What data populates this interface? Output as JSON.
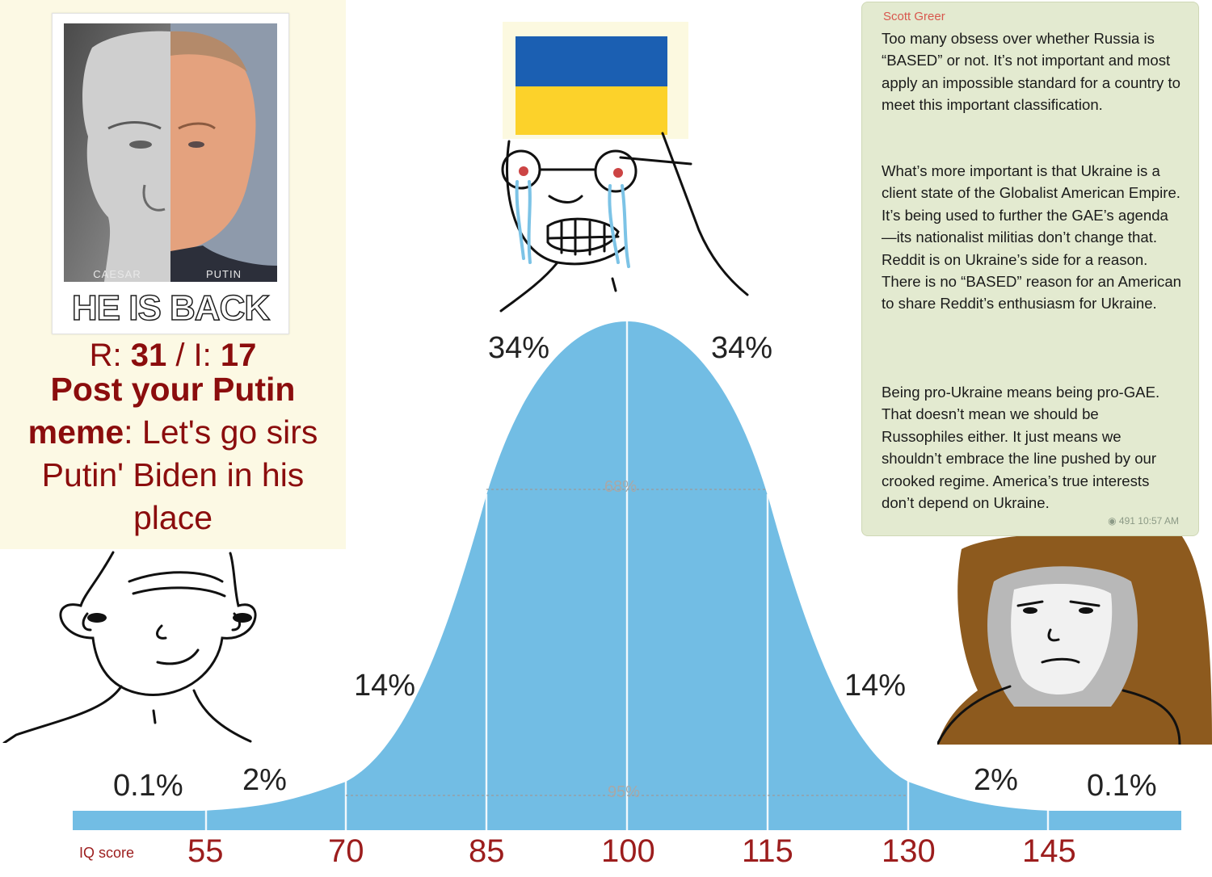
{
  "post": {
    "image_left_caption": "CAESAR",
    "image_right_caption": "PUTIN",
    "image_headline": "HE IS BACK",
    "replies_label": "R: ",
    "replies": "31",
    "images_label": " / I: ",
    "images": "17",
    "subject": "Post your Putin meme",
    "body": ": Let's go sirs Putin' Biden in his place"
  },
  "telegram": {
    "author": "Scott Greer",
    "paragraphs": [
      "Too many obsess over whether Russia is “BASED” or not. It’s not important and most apply an impossible standard for a country to meet this important classification.",
      "What’s more important is that Ukraine is a client state of the Globalist American Empire. It’s being used to further the GAE’s agenda—its nationalist militias don’t change that. Reddit is on Ukraine’s side for a reason. There is no “BASED” reason for an American to share Reddit’s enthusiasm for Ukraine.",
      "Being pro-Ukraine means being pro-GAE. That doesn’t mean we should be Russophiles either. It just means we shouldn’t embrace the line pushed by our crooked regime. America’s true interests don’t depend on Ukraine."
    ],
    "views": "491",
    "time": "10:57 AM"
  },
  "bell_curve": {
    "x_label": "IQ score",
    "iq_ticks": [
      "55",
      "70",
      "85",
      "100",
      "115",
      "130",
      "145"
    ],
    "segment_labels": [
      "0.1%",
      "2%",
      "14%",
      "34%",
      "34%",
      "14%",
      "2%",
      "0.1%"
    ],
    "inner_labels": [
      "68%",
      "95%"
    ],
    "fill_color": "#72bde4"
  },
  "colors": {
    "post_red": "#8b0d0d",
    "ukraine_blue": "#1b5fb2",
    "ukraine_yellow": "#fcd22a"
  }
}
